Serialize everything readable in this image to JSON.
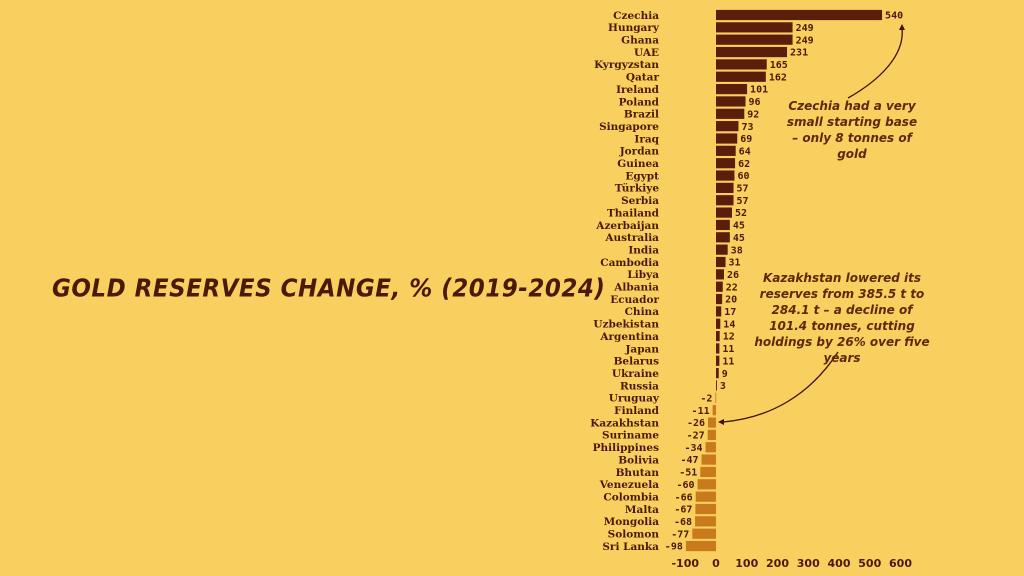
{
  "chart_data": {
    "type": "bar",
    "orientation": "horizontal",
    "title": "GOLD RESERVES CHANGE, % (2019-2024)",
    "xlabel": "",
    "ylabel": "",
    "xlim": [
      -100,
      600
    ],
    "xticks": [
      -100,
      0,
      100,
      200,
      300,
      400,
      500,
      600
    ],
    "grid": false,
    "categories": [
      "Czechia",
      "Hungary",
      "Ghana",
      "UAE",
      "Kyrgyzstan",
      "Qatar",
      "Ireland",
      "Poland",
      "Brazil",
      "Singapore",
      "Iraq",
      "Jordan",
      "Guinea",
      "Egypt",
      "Türkiye",
      "Serbia",
      "Thailand",
      "Azerbaijan",
      "Australia",
      "India",
      "Cambodia",
      "Libya",
      "Albania",
      "Ecuador",
      "China",
      "Uzbekistan",
      "Argentina",
      "Japan",
      "Belarus",
      "Ukraine",
      "Russia",
      "Uruguay",
      "Finland",
      "Kazakhstan",
      "Suriname",
      "Philippines",
      "Bolivia",
      "Bhutan",
      "Venezuela",
      "Colombia",
      "Malta",
      "Mongolia",
      "Solomon",
      "Sri Lanka"
    ],
    "values": [
      540,
      249,
      249,
      231,
      165,
      162,
      101,
      96,
      92,
      73,
      69,
      64,
      62,
      60,
      57,
      57,
      52,
      45,
      45,
      38,
      31,
      26,
      22,
      20,
      17,
      14,
      12,
      11,
      11,
      9,
      3,
      -2,
      -11,
      -26,
      -27,
      -34,
      -47,
      -51,
      -60,
      -66,
      -67,
      -68,
      -77,
      -98
    ],
    "colors": {
      "positive": "#5a1e0a",
      "negative": "#c97a1c",
      "background": "#f9cf5f"
    },
    "annotations": [
      {
        "target": "Czechia",
        "text": "Czechia had a very small starting base – only 8 tonnes of gold"
      },
      {
        "target": "Kazakhstan",
        "text": "Kazakhstan lowered its reserves from 385.5 t to 284.1 t – a decline of 101.4 tonnes, cutting holdings by 26% over five years"
      }
    ]
  }
}
